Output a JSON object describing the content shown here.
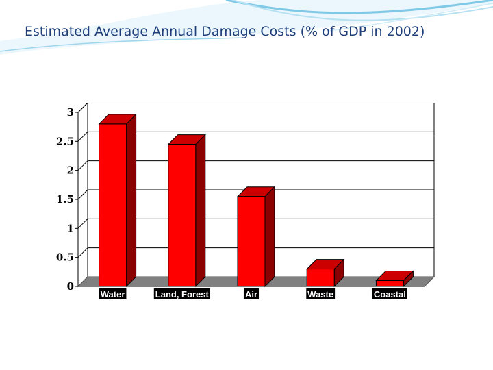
{
  "slide": {
    "title": "Estimated Average Annual Damage Costs        (% of GDP in 2002)"
  },
  "chart_data": {
    "type": "bar",
    "title": "",
    "xlabel": "",
    "ylabel": "",
    "categories": [
      "Water",
      "Land, Forest",
      "Air",
      "Waste",
      "Coastal"
    ],
    "values": [
      2.8,
      2.45,
      1.55,
      0.3,
      0.1
    ],
    "ylim": [
      0,
      3
    ],
    "yticks": [
      "0",
      "0.5",
      "1",
      "1.5",
      "2",
      "2.5",
      "3"
    ],
    "grid": true,
    "style": "3d-bar",
    "colors": {
      "bar": "#ff0000",
      "bar_side": "#8b0000",
      "bar_top": "#cc0000",
      "floor": "#808080",
      "label_box": "#000000"
    }
  }
}
